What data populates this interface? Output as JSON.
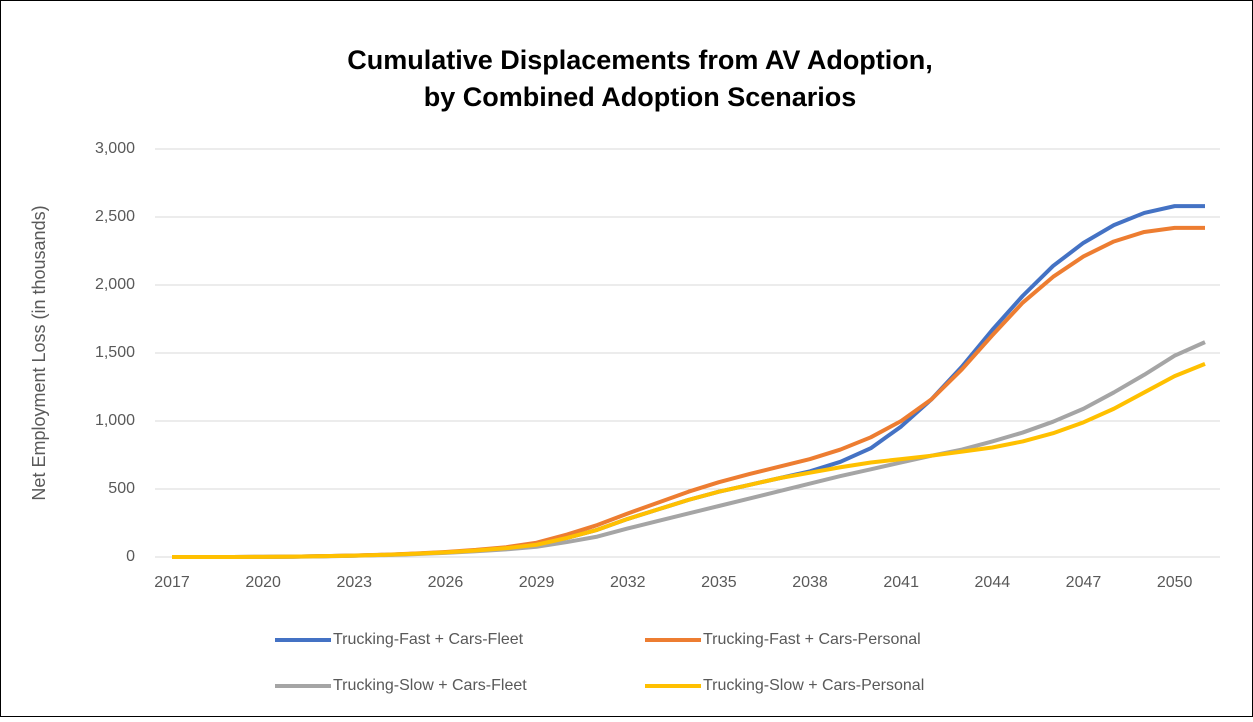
{
  "chart_data": {
    "type": "line",
    "title": [
      "Cumulative Displacements from AV Adoption,",
      "by Combined Adoption Scenarios"
    ],
    "y_label": "Net Employment Loss (in thousands)",
    "x": [
      2017,
      2018,
      2019,
      2020,
      2021,
      2022,
      2023,
      2024,
      2025,
      2026,
      2027,
      2028,
      2029,
      2030,
      2031,
      2032,
      2033,
      2034,
      2035,
      2036,
      2037,
      2038,
      2039,
      2040,
      2041,
      2042,
      2043,
      2044,
      2045,
      2046,
      2047,
      2048,
      2049,
      2050,
      2051
    ],
    "xlim": [
      2017,
      2051
    ],
    "xticks": [
      2017,
      2020,
      2023,
      2026,
      2029,
      2032,
      2035,
      2038,
      2041,
      2044,
      2047,
      2050
    ],
    "ylim": [
      0,
      3000
    ],
    "yticks": [
      0,
      500,
      {
        "value": 1000,
        "label": "1,000"
      },
      {
        "value": 1500,
        "label": "1,500"
      },
      {
        "value": 2000,
        "label": "2,000"
      },
      {
        "value": 2500,
        "label": "2,500"
      },
      {
        "value": 3000,
        "label": "3,000"
      }
    ],
    "grid": true,
    "legend": "bottom",
    "series": [
      {
        "name": "Trucking-Fast + Cars-Fleet",
        "color": "#4472c4",
        "values": [
          0,
          0,
          0,
          1,
          3,
          6,
          10,
          16,
          24,
          34,
          48,
          65,
          90,
          140,
          200,
          280,
          350,
          420,
          480,
          530,
          580,
          630,
          700,
          800,
          960,
          1160,
          1400,
          1670,
          1920,
          2140,
          2310,
          2440,
          2530,
          2580,
          2580
        ]
      },
      {
        "name": "Trucking-Fast + Cars-Personal",
        "color": "#ed7d31",
        "values": [
          0,
          0,
          0,
          1,
          3,
          6,
          11,
          17,
          26,
          37,
          52,
          72,
          105,
          165,
          235,
          320,
          400,
          480,
          550,
          610,
          665,
          720,
          790,
          880,
          1000,
          1160,
          1380,
          1630,
          1870,
          2060,
          2210,
          2320,
          2390,
          2420,
          2420
        ]
      },
      {
        "name": "Trucking-Slow + Cars-Fleet",
        "color": "#a5a5a5",
        "values": [
          0,
          0,
          0,
          1,
          2,
          5,
          9,
          14,
          21,
          30,
          42,
          56,
          75,
          110,
          150,
          210,
          265,
          320,
          375,
          430,
          485,
          540,
          595,
          645,
          695,
          745,
          790,
          850,
          915,
          995,
          1090,
          1210,
          1340,
          1480,
          1580
        ]
      },
      {
        "name": "Trucking-Slow + Cars-Personal",
        "color": "#ffc000",
        "values": [
          0,
          0,
          0,
          1,
          3,
          6,
          10,
          16,
          24,
          34,
          48,
          65,
          90,
          140,
          200,
          280,
          350,
          420,
          480,
          530,
          580,
          620,
          660,
          695,
          720,
          745,
          775,
          805,
          850,
          910,
          990,
          1090,
          1210,
          1330,
          1420
        ]
      }
    ]
  }
}
